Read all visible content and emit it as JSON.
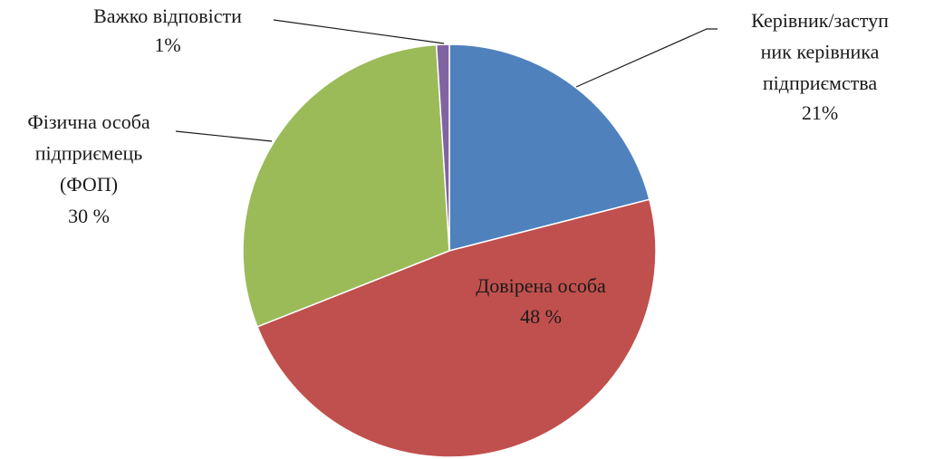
{
  "chart_data": {
    "type": "pie",
    "categories": [
      "Керівник/заступ\nник керівника\nпідприємства",
      "Довірена особа",
      "Фізична особа\nпідприємець\n(ФОП)",
      "Важко відповісти"
    ],
    "values": [
      21,
      48,
      30,
      1
    ],
    "value_labels": [
      "21%",
      "48 %",
      "30 %",
      "1%"
    ],
    "colors": [
      "#4f81bd",
      "#c0504d",
      "#9bbb59",
      "#8064a2"
    ]
  }
}
